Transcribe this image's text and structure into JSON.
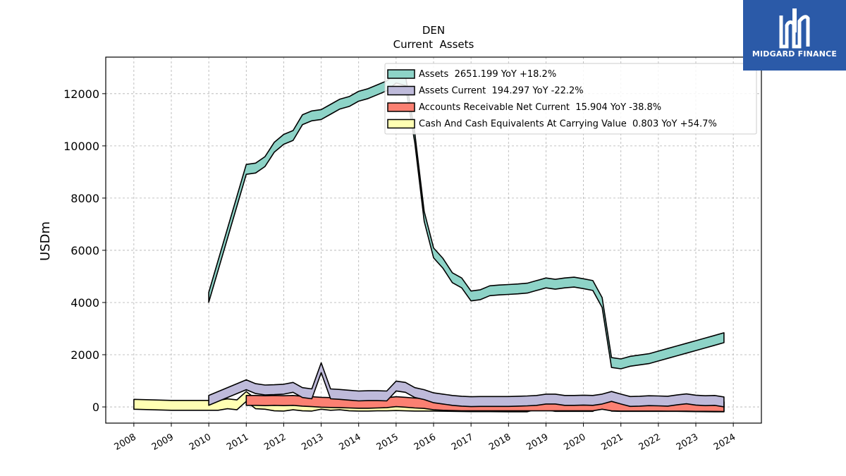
{
  "brand": {
    "name": "MIDGARD FINANCE",
    "bg_color": "#2b5aa8"
  },
  "chart_data": {
    "type": "area",
    "title": "DEN",
    "subtitle": "Current  Assets",
    "xlabel": "",
    "ylabel": "USDm",
    "xlim": [
      2007.25,
      2024.75
    ],
    "ylim": [
      -620,
      13400
    ],
    "yticks": [
      0,
      2000,
      4000,
      6000,
      8000,
      10000,
      12000
    ],
    "xticks": [
      "2008",
      "2009",
      "2010",
      "2011",
      "2012",
      "2013",
      "2014",
      "2015",
      "2016",
      "2017",
      "2018",
      "2019",
      "2020",
      "2021",
      "2022",
      "2023",
      "2024"
    ],
    "grid": true,
    "legend_position": "top-right",
    "series": [
      {
        "name": "Assets",
        "legend": "Assets  2651.199 YoY +18.2%",
        "color": "#8dd3c7",
        "x": [
          2010.0,
          2011.0,
          2011.25,
          2011.5,
          2011.75,
          2012.0,
          2012.25,
          2012.5,
          2012.75,
          2013.0,
          2013.25,
          2013.5,
          2013.75,
          2014.0,
          2014.25,
          2014.5,
          2014.75,
          2015.0,
          2015.25,
          2015.5,
          2015.75,
          2016.0,
          2016.25,
          2016.5,
          2016.75,
          2017.0,
          2017.25,
          2017.5,
          2017.75,
          2018.0,
          2018.25,
          2018.5,
          2018.75,
          2019.0,
          2019.25,
          2019.5,
          2019.75,
          2020.0,
          2020.25,
          2020.5,
          2020.75,
          2021.0,
          2021.25,
          2021.5,
          2021.75,
          2022.0,
          2022.25,
          2022.5,
          2022.75,
          2023.0,
          2023.25,
          2023.5,
          2023.75
        ],
        "values": [
          4200,
          9100,
          9150,
          9400,
          9950,
          10250,
          10400,
          11000,
          11150,
          11200,
          11400,
          11600,
          11700,
          11900,
          12000,
          12150,
          12300,
          12600,
          12500,
          10300,
          7300,
          5900,
          5500,
          4950,
          4750,
          4250,
          4300,
          4450,
          4480,
          4500,
          4520,
          4550,
          4650,
          4750,
          4700,
          4750,
          4780,
          4720,
          4650,
          4000,
          1700,
          1650,
          1750,
          1800,
          1850,
          1950,
          2050,
          2150,
          2250,
          2350,
          2450,
          2550,
          2651
        ]
      },
      {
        "name": "Assets Current",
        "legend": "Assets Current  194.297 YoY -22.2%",
        "color": "#bebada",
        "x": [
          2010.0,
          2011.0,
          2011.25,
          2011.5,
          2011.75,
          2012.0,
          2012.25,
          2012.5,
          2012.75,
          2013.0,
          2013.25,
          2013.5,
          2013.75,
          2014.0,
          2014.25,
          2014.5,
          2014.75,
          2015.0,
          2015.25,
          2015.5,
          2015.75,
          2016.0,
          2016.25,
          2016.5,
          2016.75,
          2017.0,
          2017.25,
          2017.5,
          2017.75,
          2018.0,
          2018.25,
          2018.5,
          2018.75,
          2019.0,
          2019.25,
          2019.5,
          2019.75,
          2020.0,
          2020.25,
          2020.5,
          2020.75,
          2021.0,
          2021.25,
          2021.5,
          2021.75,
          2022.0,
          2022.25,
          2022.5,
          2022.75,
          2023.0,
          2023.25,
          2023.5,
          2023.75
        ],
        "values": [
          250,
          850,
          700,
          650,
          660,
          680,
          750,
          550,
          500,
          1500,
          500,
          480,
          450,
          420,
          430,
          430,
          420,
          800,
          750,
          550,
          470,
          350,
          300,
          250,
          220,
          200,
          210,
          210,
          210,
          210,
          220,
          230,
          250,
          300,
          300,
          250,
          250,
          260,
          250,
          300,
          400,
          300,
          210,
          220,
          240,
          230,
          220,
          270,
          310,
          260,
          240,
          250,
          194
        ]
      },
      {
        "name": "Accounts Receivable Net Current",
        "legend": "Accounts Receivable Net Current  15.904 YoY -38.8%",
        "color": "#fb8072",
        "x": [
          2011.0,
          2011.25,
          2011.5,
          2011.75,
          2012.0,
          2012.25,
          2012.5,
          2012.75,
          2013.0,
          2013.25,
          2013.5,
          2013.75,
          2014.0,
          2014.25,
          2014.5,
          2014.75,
          2015.0,
          2015.25,
          2015.5,
          2015.75,
          2016.0,
          2016.25,
          2016.5,
          2016.75,
          2017.0,
          2017.25,
          2017.5,
          2017.75,
          2018.0,
          2018.25,
          2018.5,
          2018.75,
          2019.0,
          2019.25,
          2019.5,
          2019.75,
          2020.0,
          2020.25,
          2020.5,
          2020.75,
          2021.0,
          2021.25,
          2021.5,
          2021.75,
          2022.0,
          2022.25,
          2022.5,
          2022.75,
          2023.0,
          2023.25,
          2023.5,
          2023.75
        ],
        "values": [
          250,
          250,
          240,
          250,
          240,
          250,
          220,
          200,
          180,
          170,
          160,
          150,
          140,
          140,
          150,
          160,
          200,
          180,
          150,
          130,
          80,
          60,
          50,
          40,
          40,
          40,
          40,
          40,
          40,
          40,
          40,
          40,
          40,
          40,
          40,
          40,
          40,
          40,
          100,
          40,
          30,
          30,
          30,
          30,
          30,
          25,
          25,
          25,
          20,
          20,
          18,
          16
        ]
      },
      {
        "name": "Cash And Cash Equivalents At Carrying Value",
        "legend": "Cash And Cash Equivalents At Carrying Value  0.803 YoY +54.7%",
        "color": "#ffffb3",
        "x": [
          2008.0,
          2009.0,
          2010.0,
          2010.25,
          2010.5,
          2010.75,
          2011.0,
          2011.25,
          2011.5,
          2011.75,
          2012.0,
          2012.25,
          2012.5,
          2012.75,
          2013.0,
          2013.25,
          2013.5,
          2013.75,
          2014.0,
          2014.25,
          2014.5,
          2014.75,
          2015.0,
          2015.25,
          2015.5,
          2015.75,
          2016.0,
          2016.5,
          2017.0,
          2017.5,
          2018.0,
          2018.5,
          2018.75,
          2019.0,
          2019.25,
          2019.5,
          2019.75,
          2020.0,
          2020.25,
          2020.5,
          2020.75,
          2021.0,
          2021.5,
          2022.0,
          2022.5,
          2023.0,
          2023.5,
          2023.75
        ],
        "values": [
          100,
          60,
          60,
          60,
          120,
          80,
          400,
          120,
          100,
          40,
          30,
          80,
          40,
          30,
          100,
          60,
          80,
          40,
          30,
          30,
          40,
          40,
          50,
          40,
          30,
          30,
          30,
          20,
          10,
          10,
          5,
          5,
          100,
          80,
          20,
          20,
          20,
          20,
          20,
          250,
          30,
          20,
          20,
          20,
          20,
          10,
          5,
          0.8
        ]
      }
    ]
  }
}
